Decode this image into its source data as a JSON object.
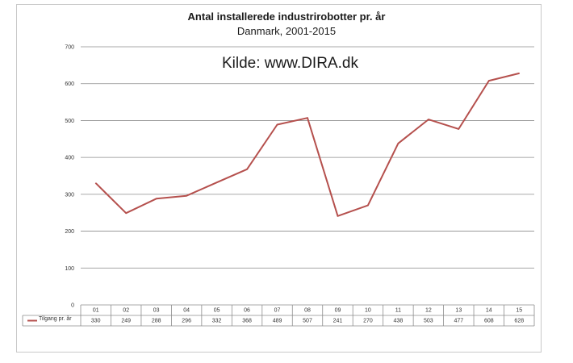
{
  "chart_data": {
    "type": "line",
    "title": "Antal installerede industrirobotter pr. år",
    "subtitle": "Danmark, 2001-2015",
    "annotation": "Kilde: www.DIRA.dk",
    "categories": [
      "01",
      "02",
      "03",
      "04",
      "05",
      "06",
      "07",
      "08",
      "09",
      "10",
      "11",
      "12",
      "13",
      "14",
      "15"
    ],
    "series": [
      {
        "name": "Tilgang pr. år",
        "color": "#b5504d",
        "values": [
          330,
          249,
          288,
          296,
          332,
          368,
          489,
          507,
          241,
          270,
          438,
          503,
          477,
          608,
          628
        ]
      }
    ],
    "ylim": [
      0,
      700
    ],
    "yticks": [
      0,
      100,
      200,
      300,
      400,
      500,
      600,
      700
    ],
    "grid": true,
    "legend": "data-table"
  }
}
